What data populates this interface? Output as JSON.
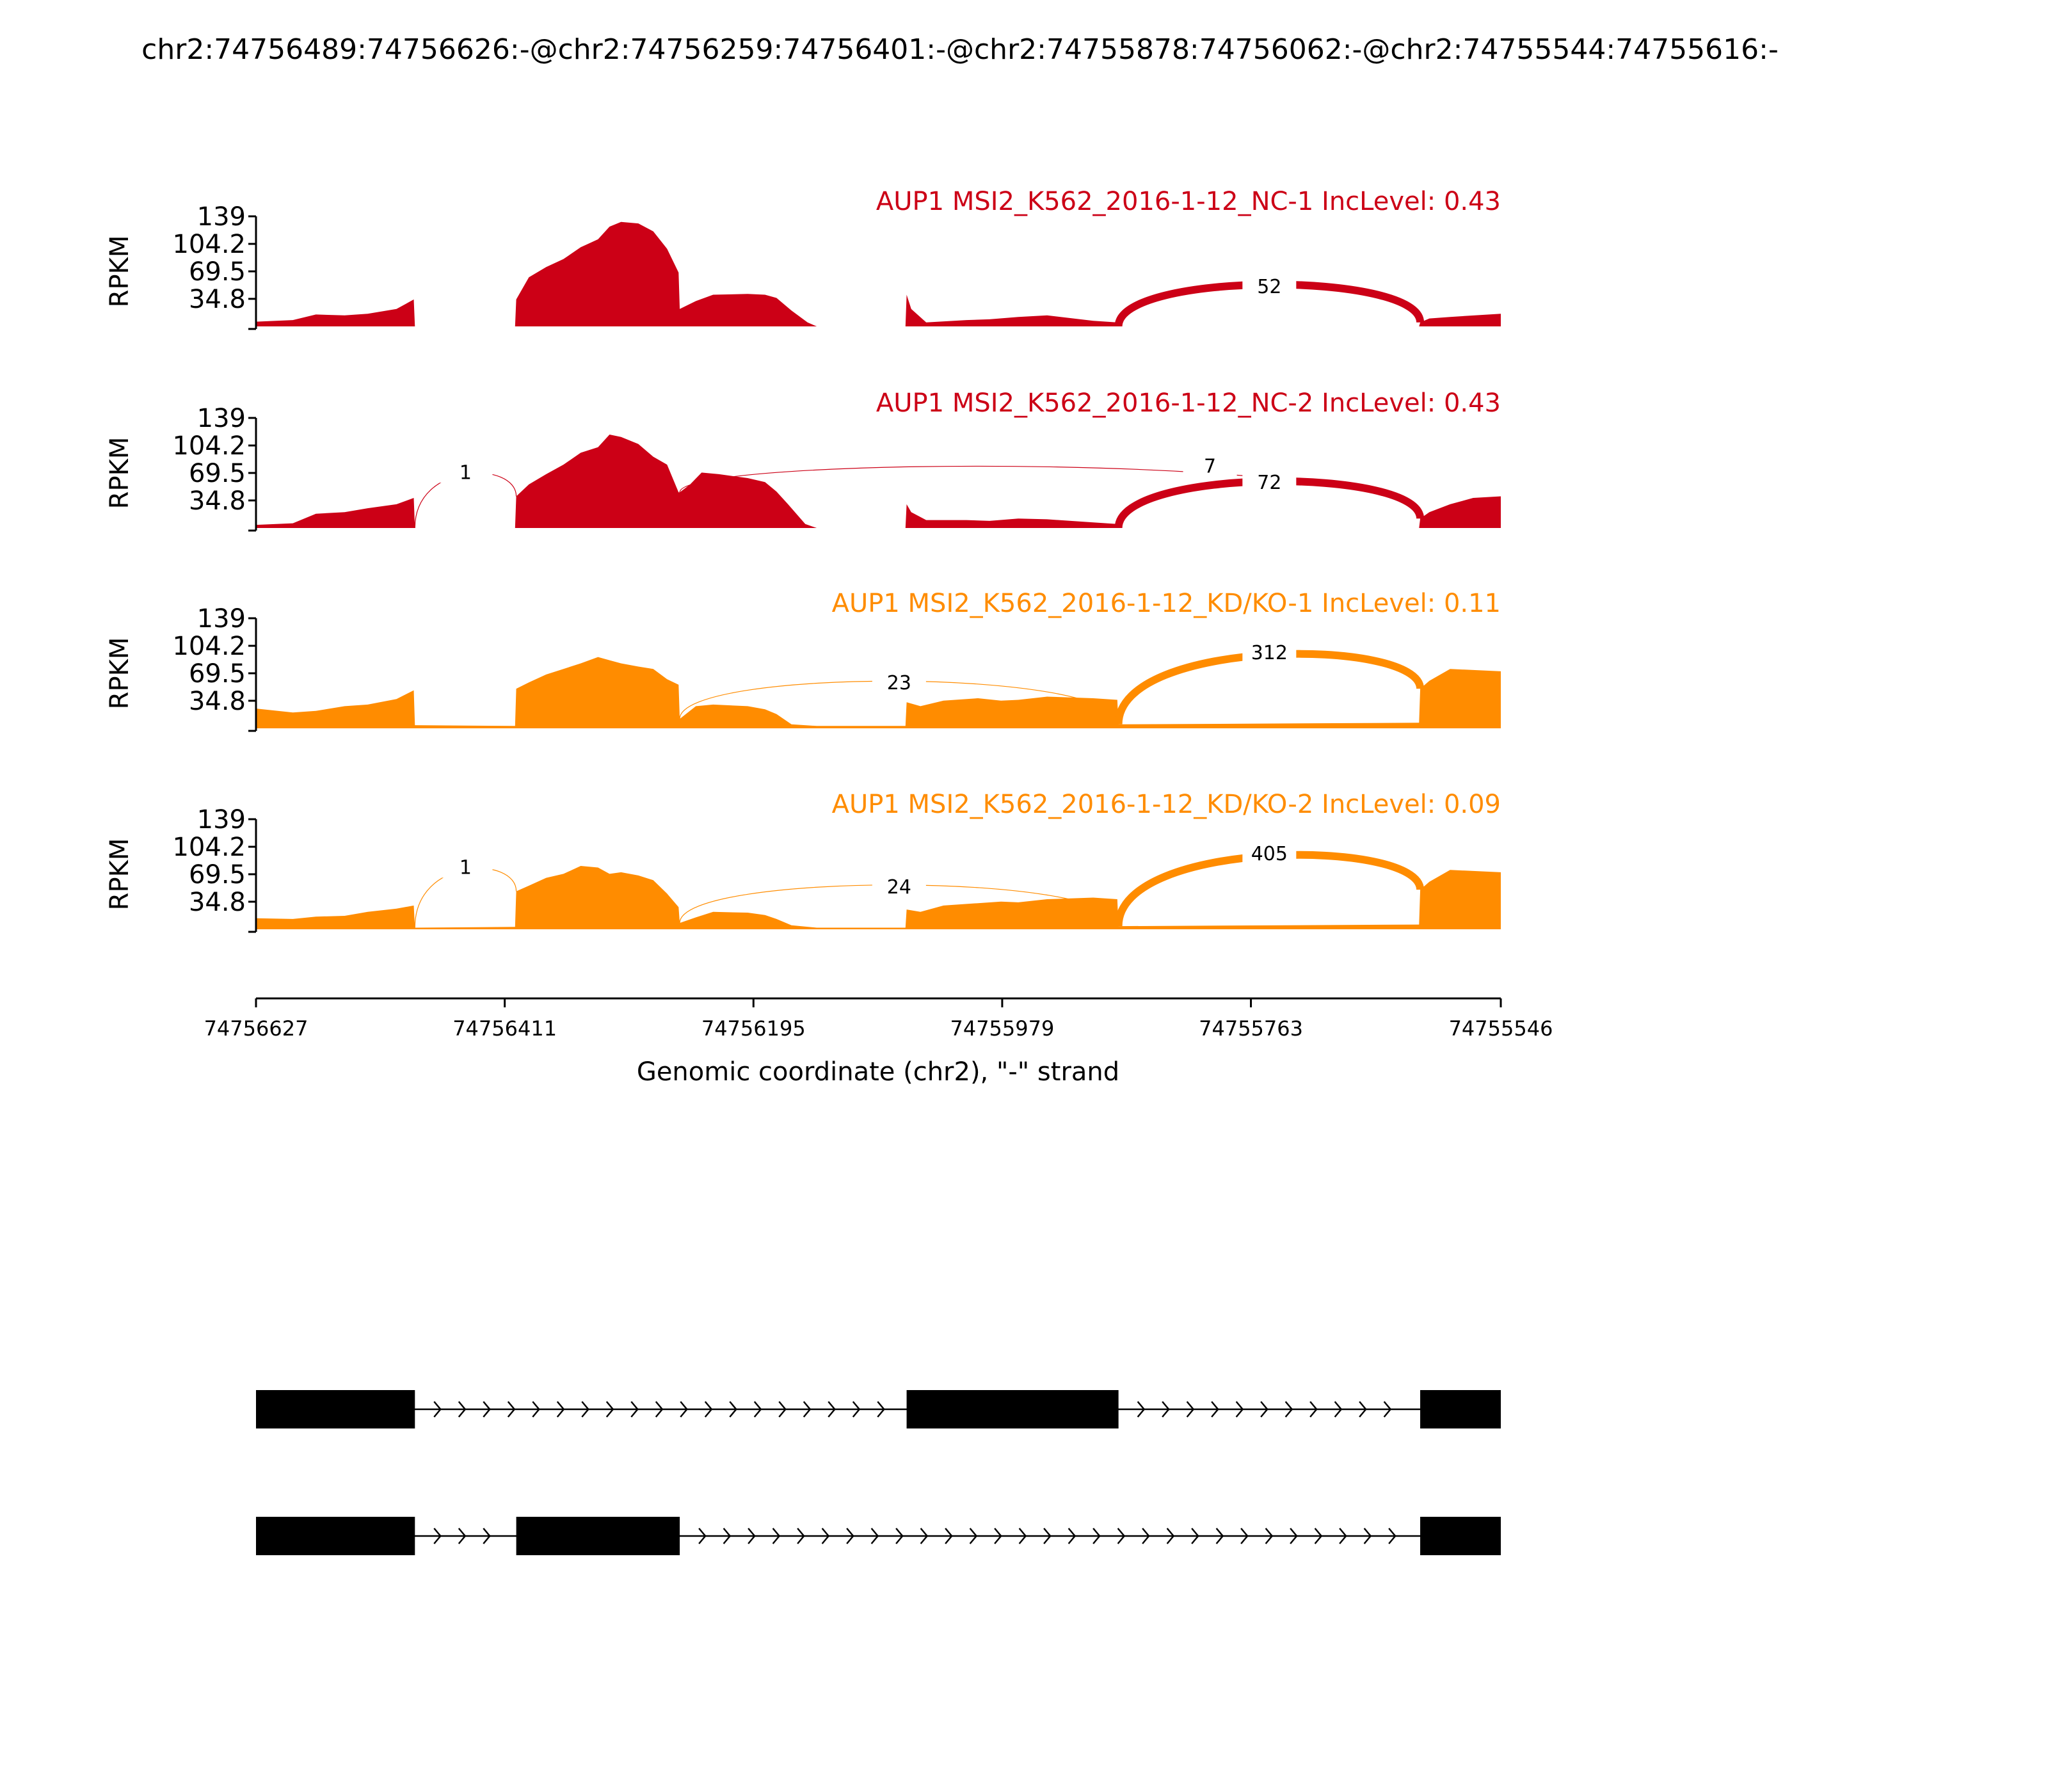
{
  "title": "chr2:74756489:74756626:-@chr2:74756259:74756401:-@chr2:74755878:74756062:-@chr2:74755544:74755616:-",
  "chart_data": {
    "type": "area",
    "plot_kind": "sashimi",
    "region": {
      "start": 74756627,
      "end": 74755546,
      "strand": "-"
    },
    "xlabel": "Genomic coordinate (chr2), \"-\" strand",
    "x_ticks": [
      "74756627",
      "74756411",
      "74756195",
      "74755979",
      "74755763",
      "74755546"
    ],
    "x_tick_values": [
      74756627,
      74756411,
      74756195,
      74755979,
      74755763,
      74755546
    ],
    "ylabel": "RPKM",
    "ylim": [
      0,
      139
    ],
    "y_ticks": [
      "139",
      "104.2",
      "69.5",
      "34.8"
    ],
    "y_tick_values": [
      139,
      104.2,
      69.5,
      34.8
    ],
    "series": [
      {
        "name": "AUP1 MSI2_K562_2016-1-12_NC-1 IncLevel: 0.43",
        "color": "#cc0016",
        "coverage": [
          [
            74756627,
            6
          ],
          [
            74756595,
            8
          ],
          [
            74756575,
            15
          ],
          [
            74756550,
            14
          ],
          [
            74756530,
            16
          ],
          [
            74756505,
            22
          ],
          [
            74756490,
            34
          ],
          [
            74756489,
            0
          ],
          [
            74756402,
            0
          ],
          [
            74756401,
            34
          ],
          [
            74756390,
            62
          ],
          [
            74756375,
            75
          ],
          [
            74756360,
            85
          ],
          [
            74756345,
            100
          ],
          [
            74756330,
            110
          ],
          [
            74756320,
            126
          ],
          [
            74756310,
            132
          ],
          [
            74756295,
            130
          ],
          [
            74756282,
            120
          ],
          [
            74756270,
            98
          ],
          [
            74756260,
            68
          ],
          [
            74756259,
            22
          ],
          [
            74756245,
            32
          ],
          [
            74756230,
            40
          ],
          [
            74756200,
            41
          ],
          [
            74756185,
            40
          ],
          [
            74756175,
            36
          ],
          [
            74756162,
            20
          ],
          [
            74756148,
            5
          ],
          [
            74756140,
            0
          ],
          [
            74756063,
            0
          ],
          [
            74756062,
            40
          ],
          [
            74756058,
            22
          ],
          [
            74756045,
            5
          ],
          [
            74756010,
            8
          ],
          [
            74755990,
            9
          ],
          [
            74755965,
            12
          ],
          [
            74755940,
            14
          ],
          [
            74755900,
            7
          ],
          [
            74755879,
            5
          ],
          [
            74755878,
            0
          ],
          [
            74755617,
            0
          ],
          [
            74755616,
            5
          ],
          [
            74755608,
            10
          ],
          [
            74755590,
            12
          ],
          [
            74755546,
            16
          ]
        ],
        "junctions": [
          {
            "from": 74755878,
            "to": 74755616,
            "count": 52
          }
        ]
      },
      {
        "name": "AUP1 MSI2_K562_2016-1-12_NC-2 IncLevel: 0.43",
        "color": "#cc0016",
        "coverage": [
          [
            74756627,
            4
          ],
          [
            74756595,
            6
          ],
          [
            74756575,
            18
          ],
          [
            74756550,
            20
          ],
          [
            74756530,
            25
          ],
          [
            74756505,
            30
          ],
          [
            74756490,
            38
          ],
          [
            74756489,
            0
          ],
          [
            74756402,
            0
          ],
          [
            74756401,
            40
          ],
          [
            74756390,
            55
          ],
          [
            74756375,
            68
          ],
          [
            74756360,
            80
          ],
          [
            74756345,
            95
          ],
          [
            74756330,
            102
          ],
          [
            74756320,
            118
          ],
          [
            74756310,
            115
          ],
          [
            74756295,
            106
          ],
          [
            74756282,
            90
          ],
          [
            74756270,
            80
          ],
          [
            74756260,
            45
          ],
          [
            74756259,
            45
          ],
          [
            74756250,
            55
          ],
          [
            74756240,
            70
          ],
          [
            74756225,
            68
          ],
          [
            74756200,
            63
          ],
          [
            74756185,
            58
          ],
          [
            74756175,
            46
          ],
          [
            74756165,
            30
          ],
          [
            74756150,
            5
          ],
          [
            74756140,
            0
          ],
          [
            74756063,
            0
          ],
          [
            74756062,
            30
          ],
          [
            74756058,
            20
          ],
          [
            74756045,
            10
          ],
          [
            74756010,
            10
          ],
          [
            74755990,
            9
          ],
          [
            74755965,
            12
          ],
          [
            74755940,
            11
          ],
          [
            74755900,
            7
          ],
          [
            74755879,
            5
          ],
          [
            74755878,
            0
          ],
          [
            74755617,
            0
          ],
          [
            74755616,
            12
          ],
          [
            74755608,
            20
          ],
          [
            74755590,
            30
          ],
          [
            74755570,
            38
          ],
          [
            74755546,
            40
          ]
        ],
        "junctions": [
          {
            "from": 74756489,
            "to": 74756401,
            "count": 1
          },
          {
            "from": 74756259,
            "to": 74755616,
            "count": 7
          },
          {
            "from": 74755878,
            "to": 74755616,
            "count": 72
          }
        ]
      },
      {
        "name": "AUP1 MSI2_K562_2016-1-12_KD/KO-1 IncLevel: 0.11",
        "color": "#ff8c00",
        "coverage": [
          [
            74756627,
            25
          ],
          [
            74756595,
            20
          ],
          [
            74756575,
            22
          ],
          [
            74756550,
            28
          ],
          [
            74756530,
            30
          ],
          [
            74756505,
            37
          ],
          [
            74756490,
            48
          ],
          [
            74756489,
            4
          ],
          [
            74756402,
            3
          ],
          [
            74756401,
            50
          ],
          [
            74756390,
            58
          ],
          [
            74756375,
            68
          ],
          [
            74756360,
            75
          ],
          [
            74756345,
            82
          ],
          [
            74756330,
            90
          ],
          [
            74756320,
            86
          ],
          [
            74756310,
            82
          ],
          [
            74756295,
            78
          ],
          [
            74756282,
            75
          ],
          [
            74756270,
            62
          ],
          [
            74756260,
            55
          ],
          [
            74756259,
            12
          ],
          [
            74756245,
            28
          ],
          [
            74756230,
            30
          ],
          [
            74756200,
            28
          ],
          [
            74756185,
            24
          ],
          [
            74756175,
            18
          ],
          [
            74756162,
            5
          ],
          [
            74756140,
            3
          ],
          [
            74756063,
            3
          ],
          [
            74756062,
            33
          ],
          [
            74756050,
            28
          ],
          [
            74756030,
            35
          ],
          [
            74756000,
            38
          ],
          [
            74755980,
            35
          ],
          [
            74755965,
            36
          ],
          [
            74755940,
            40
          ],
          [
            74755900,
            38
          ],
          [
            74755879,
            36
          ],
          [
            74755878,
            5
          ],
          [
            74755617,
            7
          ],
          [
            74755616,
            50
          ],
          [
            74755608,
            60
          ],
          [
            74755590,
            75
          ],
          [
            74755546,
            72
          ]
        ],
        "junctions": [
          {
            "from": 74756259,
            "to": 74755878,
            "count": 23
          },
          {
            "from": 74755878,
            "to": 74755616,
            "count": 312
          }
        ]
      },
      {
        "name": "AUP1 MSI2_K562_2016-1-12_KD/KO-2 IncLevel: 0.09",
        "color": "#ff8c00",
        "coverage": [
          [
            74756627,
            14
          ],
          [
            74756595,
            13
          ],
          [
            74756575,
            16
          ],
          [
            74756550,
            17
          ],
          [
            74756530,
            22
          ],
          [
            74756505,
            26
          ],
          [
            74756490,
            30
          ],
          [
            74756489,
            2
          ],
          [
            74756402,
            3
          ],
          [
            74756401,
            48
          ],
          [
            74756390,
            55
          ],
          [
            74756375,
            65
          ],
          [
            74756360,
            70
          ],
          [
            74756345,
            80
          ],
          [
            74756330,
            78
          ],
          [
            74756320,
            70
          ],
          [
            74756310,
            72
          ],
          [
            74756295,
            68
          ],
          [
            74756282,
            62
          ],
          [
            74756270,
            45
          ],
          [
            74756260,
            28
          ],
          [
            74756259,
            8
          ],
          [
            74756245,
            15
          ],
          [
            74756230,
            22
          ],
          [
            74756200,
            21
          ],
          [
            74756185,
            18
          ],
          [
            74756175,
            13
          ],
          [
            74756162,
            5
          ],
          [
            74756140,
            2
          ],
          [
            74756063,
            2
          ],
          [
            74756062,
            25
          ],
          [
            74756050,
            22
          ],
          [
            74756030,
            30
          ],
          [
            74756000,
            33
          ],
          [
            74755980,
            35
          ],
          [
            74755965,
            34
          ],
          [
            74755940,
            38
          ],
          [
            74755900,
            40
          ],
          [
            74755879,
            38
          ],
          [
            74755878,
            4
          ],
          [
            74755617,
            6
          ],
          [
            74755616,
            50
          ],
          [
            74755608,
            60
          ],
          [
            74755590,
            75
          ],
          [
            74755546,
            72
          ]
        ],
        "junctions": [
          {
            "from": 74756489,
            "to": 74756401,
            "count": 1
          },
          {
            "from": 74756259,
            "to": 74755878,
            "count": 24
          },
          {
            "from": 74755878,
            "to": 74755616,
            "count": 405
          }
        ]
      }
    ],
    "isoforms": [
      {
        "exons": [
          [
            74756627,
            74756489
          ],
          [
            74756062,
            74755878
          ],
          [
            74755616,
            74755546
          ]
        ]
      },
      {
        "exons": [
          [
            74756627,
            74756489
          ],
          [
            74756401,
            74756259
          ],
          [
            74755616,
            74755546
          ]
        ]
      }
    ]
  }
}
